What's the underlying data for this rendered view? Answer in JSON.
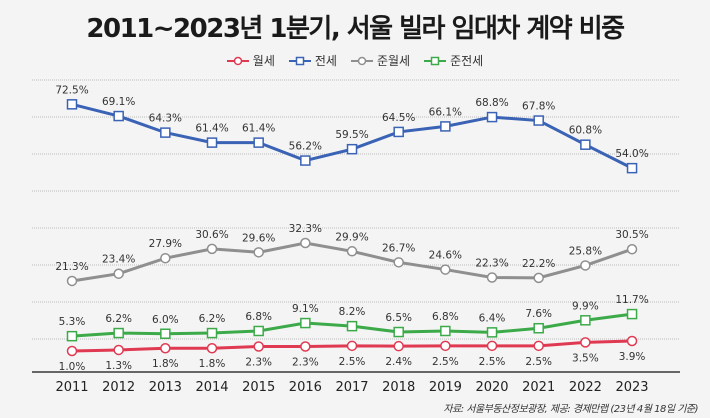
{
  "chart_data": {
    "type": "line",
    "title": "2011~2023년 1분기, 서울 빌라 임대차 계약 비중",
    "categories": [
      "2011",
      "2012",
      "2013",
      "2014",
      "2015",
      "2016",
      "2017",
      "2018",
      "2019",
      "2020",
      "2021",
      "2022",
      "2023"
    ],
    "series": [
      {
        "name": "월세",
        "color": "#e03a52",
        "marker": "circle",
        "label_pos": "below",
        "values": [
          1.0,
          1.3,
          1.8,
          1.8,
          2.3,
          2.3,
          2.5,
          2.4,
          2.5,
          2.5,
          2.5,
          3.5,
          3.9
        ]
      },
      {
        "name": "전세",
        "color": "#3a62b5",
        "marker": "square",
        "label_pos": "above",
        "values": [
          72.5,
          69.1,
          64.3,
          61.4,
          61.4,
          56.2,
          59.5,
          64.5,
          66.1,
          68.8,
          67.8,
          60.8,
          54.0
        ]
      },
      {
        "name": "준월세",
        "color": "#8f8f8f",
        "marker": "circle",
        "label_pos": "above",
        "values": [
          21.3,
          23.4,
          27.9,
          30.6,
          29.6,
          32.3,
          29.9,
          26.7,
          24.6,
          22.3,
          22.2,
          25.8,
          30.5
        ]
      },
      {
        "name": "준전세",
        "color": "#3daa4a",
        "marker": "square",
        "label_pos": "above",
        "values": [
          5.3,
          6.2,
          6.0,
          6.2,
          6.8,
          9.1,
          8.2,
          6.5,
          6.8,
          6.4,
          7.6,
          9.9,
          11.7
        ]
      }
    ],
    "value_suffix": "%",
    "grid": true,
    "legend": "top-center",
    "source": "자료: 서울부동산정보광장, 제공: 경제만랩 (23년 4월 18일 기준)"
  }
}
